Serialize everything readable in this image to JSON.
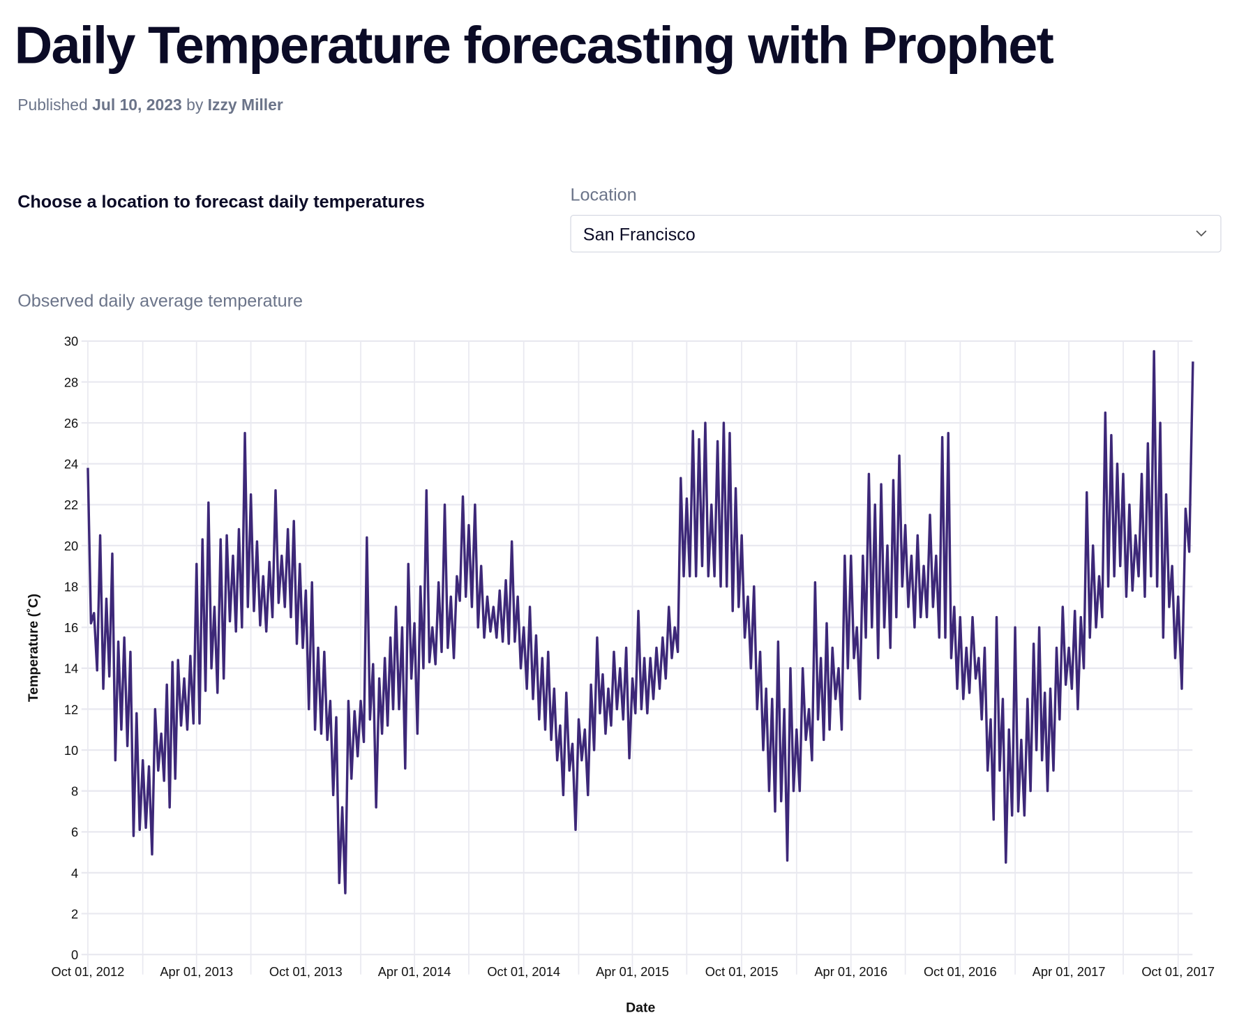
{
  "page": {
    "title": "Daily Temperature forecasting with Prophet",
    "published_prefix": "Published",
    "published_date": "Jul 10, 2023",
    "by": "by",
    "author": "Izzy Miller"
  },
  "controls": {
    "prompt": "Choose a location to forecast daily temperatures",
    "location_label": "Location",
    "location_value": "San Francisco",
    "dropdown_icon": "chevron-down-icon"
  },
  "chart_title": "Observed daily average temperature",
  "chart_data": {
    "type": "line",
    "title": "Observed daily average temperature",
    "xlabel": "Date",
    "ylabel": "Temperature (˚C)",
    "ylim": [
      0,
      30
    ],
    "yticks": [
      "0",
      "2",
      "4",
      "6",
      "8",
      "10",
      "12",
      "14",
      "16",
      "18",
      "20",
      "22",
      "24",
      "26",
      "28",
      "30"
    ],
    "xticks": [
      "Oct 01, 2012",
      "Apr 01, 2013",
      "Oct 01, 2013",
      "Apr 01, 2014",
      "Oct 01, 2014",
      "Apr 01, 2015",
      "Oct 01, 2015",
      "Apr 01, 2016",
      "Oct 01, 2016",
      "Apr 01, 2017",
      "Oct 01, 2017"
    ],
    "grid": true,
    "line_color": "#3d2878",
    "values_by_month": {
      "2012-10": [
        23.8,
        16.2,
        16.7,
        13.9,
        20.5,
        13.0
      ],
      "2012-11": [
        17.4,
        13.6,
        19.6,
        9.5,
        15.3,
        11.0
      ],
      "2012-12": [
        15.5,
        10.2,
        14.8,
        5.8,
        11.8,
        6.1
      ],
      "2013-01": [
        9.5,
        6.2,
        9.2,
        4.9,
        12.0,
        9.0
      ],
      "2013-02": [
        10.8,
        8.5,
        13.2,
        7.2,
        14.3,
        8.6
      ],
      "2013-03": [
        14.4,
        11.2,
        13.5,
        11.0,
        14.6,
        11.3
      ],
      "2013-04": [
        19.1,
        11.3,
        20.3,
        12.9,
        22.1,
        14.0
      ],
      "2013-05": [
        17.0,
        12.8,
        20.3,
        13.5,
        20.5,
        16.3
      ],
      "2013-06": [
        19.5,
        15.8,
        20.8,
        16.0,
        25.5,
        17.0
      ],
      "2013-07": [
        22.5,
        16.8,
        20.2,
        16.1,
        18.5,
        15.8
      ],
      "2013-08": [
        19.2,
        16.5,
        22.7,
        17.2,
        19.5,
        17.0
      ],
      "2013-09": [
        20.8,
        16.5,
        21.2,
        15.2,
        19.1,
        15.0
      ],
      "2013-10": [
        17.8,
        12.0,
        18.2,
        11.0,
        15.0,
        10.8
      ],
      "2013-11": [
        14.8,
        10.5,
        12.4,
        7.8,
        11.6,
        3.5
      ],
      "2013-12": [
        7.2,
        3.0,
        12.4,
        8.6,
        11.9,
        9.7
      ],
      "2014-01": [
        12.4,
        10.4,
        20.4,
        11.5,
        14.2,
        7.2
      ],
      "2014-02": [
        13.5,
        10.8,
        14.5,
        11.2,
        15.5,
        12.0
      ],
      "2014-03": [
        17.0,
        12.0,
        16.0,
        9.1,
        19.1,
        13.5
      ],
      "2014-04": [
        16.2,
        10.8,
        18.0,
        14.0,
        22.7,
        14.3
      ],
      "2014-05": [
        16.0,
        14.2,
        18.2,
        14.8,
        22.0,
        15.0
      ],
      "2014-06": [
        17.5,
        14.5,
        18.5,
        17.3,
        22.4,
        17.5
      ],
      "2014-07": [
        21.0,
        17.0,
        22.0,
        16.0,
        19.0,
        15.5
      ],
      "2014-08": [
        17.5,
        15.8,
        17.0,
        15.5,
        17.8,
        15.3
      ],
      "2014-09": [
        18.3,
        15.2,
        20.2,
        15.3,
        17.5,
        14.0
      ],
      "2014-10": [
        16.0,
        13.0,
        17.0,
        12.5,
        15.6,
        11.5
      ],
      "2014-11": [
        14.5,
        11.0,
        14.8,
        10.5,
        13.0,
        9.5
      ],
      "2014-12": [
        11.2,
        7.8,
        12.8,
        9.0,
        10.3,
        6.1
      ],
      "2015-01": [
        11.5,
        9.5,
        11.0,
        7.8,
        13.2,
        10.0
      ],
      "2015-02": [
        15.5,
        11.8,
        13.7,
        10.8,
        13.0,
        11.2
      ],
      "2015-03": [
        14.8,
        12.0,
        14.0,
        11.5,
        15.0,
        9.6
      ],
      "2015-04": [
        13.5,
        11.8,
        16.8,
        12.0,
        14.5,
        11.8
      ],
      "2015-05": [
        14.5,
        12.5,
        15.0,
        13.0,
        15.5,
        13.5
      ],
      "2015-06": [
        17.0,
        14.5,
        16.0,
        14.8,
        23.3,
        18.5
      ],
      "2015-07": [
        22.3,
        18.5,
        25.6,
        18.5,
        25.2,
        19.0
      ],
      "2015-08": [
        26.0,
        18.5,
        22.0,
        18.5,
        25.1,
        18.0
      ],
      "2015-09": [
        26.0,
        18.0,
        25.5,
        16.8,
        22.8,
        17.0
      ],
      "2015-10": [
        20.5,
        15.5,
        17.5,
        14.0,
        18.0,
        12.0
      ],
      "2015-11": [
        14.8,
        10.0,
        13.0,
        8.0,
        12.5,
        7.0
      ],
      "2015-12": [
        15.3,
        7.5,
        12.0,
        4.6,
        14.0,
        8.0
      ],
      "2016-01": [
        11.0,
        8.0,
        14.0,
        10.5,
        12.0,
        9.5
      ],
      "2016-02": [
        18.2,
        11.5,
        14.5,
        10.5,
        16.2,
        11.0
      ],
      "2016-03": [
        15.0,
        12.5,
        14.0,
        11.0,
        19.5,
        14.0
      ],
      "2016-04": [
        19.5,
        14.5,
        16.0,
        12.5,
        19.5,
        15.5
      ],
      "2016-05": [
        23.5,
        16.0,
        22.0,
        14.5,
        23.0,
        16.0
      ],
      "2016-06": [
        20.0,
        15.0,
        23.2,
        16.5,
        24.4,
        18.0
      ],
      "2016-07": [
        21.0,
        17.0,
        19.5,
        16.0,
        20.5,
        16.5
      ],
      "2016-08": [
        19.0,
        16.5,
        21.5,
        17.0,
        19.5,
        15.5
      ],
      "2016-09": [
        25.3,
        15.5,
        25.5,
        14.5,
        17.0,
        13.0
      ],
      "2016-10": [
        16.5,
        12.5,
        15.0,
        12.8,
        16.5,
        13.5
      ],
      "2016-11": [
        14.5,
        11.5,
        15.0,
        9.0,
        11.5,
        6.6
      ],
      "2016-12": [
        16.5,
        9.0,
        12.5,
        4.5,
        11.0,
        6.8
      ],
      "2017-01": [
        16.0,
        7.0,
        10.5,
        6.8,
        12.5,
        8.0
      ],
      "2017-02": [
        15.2,
        10.0,
        16.0,
        9.5,
        12.8,
        8.0
      ],
      "2017-03": [
        13.0,
        9.0,
        15.0,
        11.5,
        17.0,
        13.2
      ],
      "2017-04": [
        15.0,
        13.0,
        16.8,
        12.0,
        16.5,
        14.0
      ],
      "2017-05": [
        22.6,
        15.5,
        20.0,
        16.0,
        18.5,
        16.5
      ],
      "2017-06": [
        26.5,
        18.0,
        25.4,
        18.5,
        24.0,
        19.0
      ],
      "2017-07": [
        23.5,
        17.5,
        22.0,
        17.8,
        20.5,
        18.5
      ],
      "2017-08": [
        23.5,
        17.5,
        25.0,
        18.5,
        29.5,
        18.0
      ],
      "2017-09": [
        26.0,
        15.5,
        22.5,
        17.0,
        19.0,
        14.5
      ],
      "2017-10": [
        17.5,
        13.0,
        21.8,
        19.7,
        29.0
      ]
    }
  }
}
